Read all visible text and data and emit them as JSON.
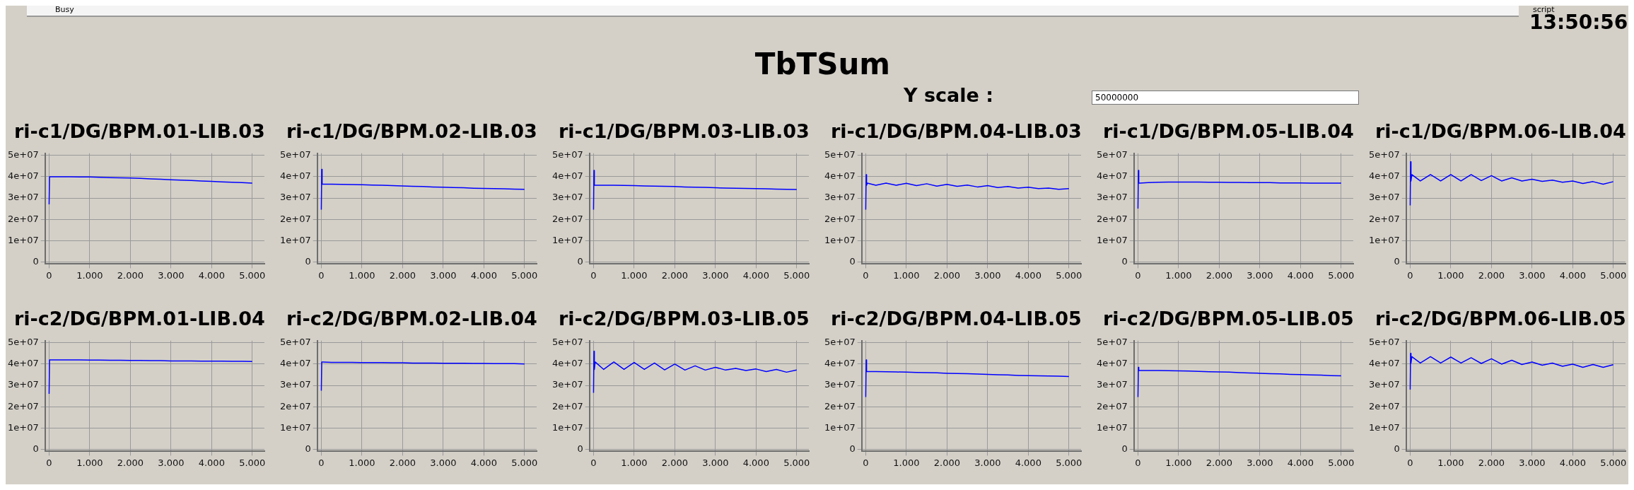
{
  "chart_data": [
    {
      "type": "other",
      "title": "TbTSum",
      "annotations": [
        "Busy",
        "script",
        "13:50:56",
        "Y scale :",
        "50000000"
      ]
    },
    {
      "type": "line",
      "title": "ri-c1/DG/BPM.01-LIB.03",
      "color": "#0000ff",
      "x": [
        0,
        10,
        20,
        40,
        250,
        500,
        750,
        1000,
        1250,
        1500,
        1750,
        2000,
        2250,
        2500,
        2750,
        3000,
        3250,
        3500,
        3750,
        4000,
        4250,
        4500,
        4750,
        5000
      ],
      "values": [
        27000000.0,
        40000000.0,
        40000000.0,
        40000000.0,
        40000000.0,
        40000000.0,
        39900000.0,
        39900000.0,
        39700000.0,
        39600000.0,
        39500000.0,
        39400000.0,
        39200000.0,
        39000000.0,
        38800000.0,
        38600000.0,
        38400000.0,
        38200000.0,
        38000000.0,
        37800000.0,
        37600000.0,
        37400000.0,
        37200000.0,
        37000000.0
      ],
      "xlim": [
        -100,
        5300
      ],
      "ylim": [
        -1000000.0,
        51000000.0
      ],
      "xticks": [
        {
          "value": 0,
          "label": "0"
        },
        {
          "value": 1000,
          "label": "1.000"
        },
        {
          "value": 2000,
          "label": "2.000"
        },
        {
          "value": 3000,
          "label": "3.000"
        },
        {
          "value": 4000,
          "label": "4.000"
        },
        {
          "value": 5000,
          "label": "5.000"
        }
      ],
      "yticks": [
        {
          "value": 0,
          "label": "0"
        },
        {
          "value": 10000000.0,
          "label": "1e+07"
        },
        {
          "value": 20000000.0,
          "label": "2e+07"
        },
        {
          "value": 30000000.0,
          "label": "3e+07"
        },
        {
          "value": 40000000.0,
          "label": "4e+07"
        },
        {
          "value": 50000000.0,
          "label": "5e+07"
        }
      ],
      "grid": true
    },
    {
      "type": "line",
      "title": "ri-c1/DG/BPM.02-LIB.03",
      "color": "#0000ff",
      "x": [
        0,
        10,
        20,
        40,
        250,
        500,
        750,
        1000,
        1250,
        1500,
        1750,
        2000,
        2250,
        2500,
        2750,
        3000,
        3250,
        3500,
        3750,
        4000,
        4250,
        4500,
        4750,
        5000
      ],
      "values": [
        24500000.0,
        43500000.0,
        36500000.0,
        36500000.0,
        36500000.0,
        36400000.0,
        36300000.0,
        36200000.0,
        36100000.0,
        36000000.0,
        35800000.0,
        35700000.0,
        35500000.0,
        35400000.0,
        35200000.0,
        35100000.0,
        34900000.0,
        34800000.0,
        34600000.0,
        34500000.0,
        34400000.0,
        34300000.0,
        34200000.0,
        34100000.0
      ],
      "xlim": [
        -100,
        5300
      ],
      "ylim": [
        -1000000.0,
        51000000.0
      ],
      "xticks": [
        {
          "value": 0,
          "label": "0"
        },
        {
          "value": 1000,
          "label": "1.000"
        },
        {
          "value": 2000,
          "label": "2.000"
        },
        {
          "value": 3000,
          "label": "3.000"
        },
        {
          "value": 4000,
          "label": "4.000"
        },
        {
          "value": 5000,
          "label": "5.000"
        }
      ],
      "yticks": [
        {
          "value": 0,
          "label": "0"
        },
        {
          "value": 10000000.0,
          "label": "1e+07"
        },
        {
          "value": 20000000.0,
          "label": "2e+07"
        },
        {
          "value": 30000000.0,
          "label": "3e+07"
        },
        {
          "value": 40000000.0,
          "label": "4e+07"
        },
        {
          "value": 50000000.0,
          "label": "5e+07"
        }
      ],
      "grid": true
    },
    {
      "type": "line",
      "title": "ri-c1/DG/BPM.03-LIB.03",
      "color": "#0000ff",
      "x": [
        0,
        10,
        20,
        40,
        250,
        500,
        750,
        1000,
        1250,
        1500,
        1750,
        2000,
        2250,
        2500,
        2750,
        3000,
        3250,
        3500,
        3750,
        4000,
        4250,
        4500,
        4750,
        5000
      ],
      "values": [
        24500000.0,
        43000000.0,
        36000000.0,
        36000000.0,
        36000000.0,
        36000000.0,
        35900000.0,
        35800000.0,
        35700000.0,
        35600000.0,
        35500000.0,
        35400000.0,
        35200000.0,
        35100000.0,
        35000000.0,
        34800000.0,
        34700000.0,
        34600000.0,
        34500000.0,
        34400000.0,
        34300000.0,
        34200000.0,
        34100000.0,
        34000000.0
      ],
      "xlim": [
        -100,
        5300
      ],
      "ylim": [
        -1000000.0,
        51000000.0
      ],
      "xticks": [
        {
          "value": 0,
          "label": "0"
        },
        {
          "value": 1000,
          "label": "1.000"
        },
        {
          "value": 2000,
          "label": "2.000"
        },
        {
          "value": 3000,
          "label": "3.000"
        },
        {
          "value": 4000,
          "label": "4.000"
        },
        {
          "value": 5000,
          "label": "5.000"
        }
      ],
      "yticks": [
        {
          "value": 0,
          "label": "0"
        },
        {
          "value": 10000000.0,
          "label": "1e+07"
        },
        {
          "value": 20000000.0,
          "label": "2e+07"
        },
        {
          "value": 30000000.0,
          "label": "3e+07"
        },
        {
          "value": 40000000.0,
          "label": "4e+07"
        },
        {
          "value": 50000000.0,
          "label": "5e+07"
        }
      ],
      "grid": true
    },
    {
      "type": "line",
      "title": "ri-c1/DG/BPM.04-LIB.03",
      "color": "#0000ff",
      "x": [
        0,
        10,
        20,
        40,
        250,
        500,
        750,
        1000,
        1250,
        1500,
        1750,
        2000,
        2250,
        2500,
        2750,
        3000,
        3250,
        3500,
        3750,
        4000,
        4250,
        4500,
        4750,
        5000
      ],
      "values": [
        24500000.0,
        41000000.0,
        36000000.0,
        37000000.0,
        36000000.0,
        37000000.0,
        36000000.0,
        36900000.0,
        35800000.0,
        36700000.0,
        35600000.0,
        36400000.0,
        35500000.0,
        36100000.0,
        35200000.0,
        35800000.0,
        34900000.0,
        35400000.0,
        34700000.0,
        35100000.0,
        34400000.0,
        34700000.0,
        34100000.0,
        34400000.0
      ],
      "xlim": [
        -100,
        5300
      ],
      "ylim": [
        -1000000.0,
        51000000.0
      ],
      "xticks": [
        {
          "value": 0,
          "label": "0"
        },
        {
          "value": 1000,
          "label": "1.000"
        },
        {
          "value": 2000,
          "label": "2.000"
        },
        {
          "value": 3000,
          "label": "3.000"
        },
        {
          "value": 4000,
          "label": "4.000"
        },
        {
          "value": 5000,
          "label": "5.000"
        }
      ],
      "yticks": [
        {
          "value": 0,
          "label": "0"
        },
        {
          "value": 10000000.0,
          "label": "1e+07"
        },
        {
          "value": 20000000.0,
          "label": "2e+07"
        },
        {
          "value": 30000000.0,
          "label": "3e+07"
        },
        {
          "value": 40000000.0,
          "label": "4e+07"
        },
        {
          "value": 50000000.0,
          "label": "5e+07"
        }
      ],
      "grid": true
    },
    {
      "type": "line",
      "title": "ri-c1/DG/BPM.05-LIB.04",
      "color": "#0000ff",
      "x": [
        0,
        10,
        20,
        40,
        250,
        500,
        750,
        1000,
        1250,
        1500,
        1750,
        2000,
        2250,
        2500,
        2750,
        3000,
        3250,
        3500,
        3750,
        4000,
        4250,
        4500,
        4750,
        5000
      ],
      "values": [
        25000000.0,
        43000000.0,
        37000000.0,
        37000000.0,
        37200000.0,
        37400000.0,
        37500000.0,
        37500000.0,
        37500000.0,
        37500000.0,
        37400000.0,
        37400000.0,
        37300000.0,
        37300000.0,
        37200000.0,
        37200000.0,
        37200000.0,
        37100000.0,
        37100000.0,
        37100000.0,
        37000000.0,
        37000000.0,
        37000000.0,
        37000000.0
      ],
      "xlim": [
        -100,
        5300
      ],
      "ylim": [
        -1000000.0,
        51000000.0
      ],
      "xticks": [
        {
          "value": 0,
          "label": "0"
        },
        {
          "value": 1000,
          "label": "1.000"
        },
        {
          "value": 2000,
          "label": "2.000"
        },
        {
          "value": 3000,
          "label": "3.000"
        },
        {
          "value": 4000,
          "label": "4.000"
        },
        {
          "value": 5000,
          "label": "5.000"
        }
      ],
      "yticks": [
        {
          "value": 0,
          "label": "0"
        },
        {
          "value": 10000000.0,
          "label": "1e+07"
        },
        {
          "value": 20000000.0,
          "label": "2e+07"
        },
        {
          "value": 30000000.0,
          "label": "3e+07"
        },
        {
          "value": 40000000.0,
          "label": "4e+07"
        },
        {
          "value": 50000000.0,
          "label": "5e+07"
        }
      ],
      "grid": true
    },
    {
      "type": "line",
      "title": "ri-c1/DG/BPM.06-LIB.04",
      "color": "#0000ff",
      "x": [
        0,
        10,
        20,
        40,
        250,
        500,
        750,
        1000,
        1250,
        1500,
        1750,
        2000,
        2250,
        2500,
        2750,
        3000,
        3250,
        3500,
        3750,
        4000,
        4250,
        4500,
        4750,
        5000
      ],
      "values": [
        26500000.0,
        47000000.0,
        38000000.0,
        41000000.0,
        38000000.0,
        41000000.0,
        38000000.0,
        41000000.0,
        38000000.0,
        41000000.0,
        38200000.0,
        40500000.0,
        38000000.0,
        39500000.0,
        38000000.0,
        38800000.0,
        37800000.0,
        38400000.0,
        37400000.0,
        38000000.0,
        36800000.0,
        37700000.0,
        36500000.0,
        37700000.0
      ],
      "xlim": [
        -100,
        5300
      ],
      "ylim": [
        -1000000.0,
        51000000.0
      ],
      "xticks": [
        {
          "value": 0,
          "label": "0"
        },
        {
          "value": 1000,
          "label": "1.000"
        },
        {
          "value": 2000,
          "label": "2.000"
        },
        {
          "value": 3000,
          "label": "3.000"
        },
        {
          "value": 4000,
          "label": "4.000"
        },
        {
          "value": 5000,
          "label": "5.000"
        }
      ],
      "yticks": [
        {
          "value": 0,
          "label": "0"
        },
        {
          "value": 10000000.0,
          "label": "1e+07"
        },
        {
          "value": 20000000.0,
          "label": "2e+07"
        },
        {
          "value": 30000000.0,
          "label": "3e+07"
        },
        {
          "value": 40000000.0,
          "label": "4e+07"
        },
        {
          "value": 50000000.0,
          "label": "5e+07"
        }
      ],
      "grid": true
    },
    {
      "type": "line",
      "title": "ri-c2/DG/BPM.01-LIB.04",
      "color": "#0000ff",
      "x": [
        0,
        10,
        20,
        40,
        250,
        500,
        750,
        1000,
        1250,
        1500,
        1750,
        2000,
        2250,
        2500,
        2750,
        3000,
        3250,
        3500,
        3750,
        4000,
        4250,
        4500,
        4750,
        5000
      ],
      "values": [
        26000000.0,
        42000000.0,
        42000000.0,
        42000000.0,
        42000000.0,
        42000000.0,
        42000000.0,
        41900000.0,
        41900000.0,
        41800000.0,
        41800000.0,
        41700000.0,
        41700000.0,
        41600000.0,
        41600000.0,
        41500000.0,
        41500000.0,
        41500000.0,
        41400000.0,
        41400000.0,
        41400000.0,
        41300000.0,
        41300000.0,
        41200000.0
      ],
      "xlim": [
        -100,
        5300
      ],
      "ylim": [
        -1000000.0,
        51000000.0
      ],
      "xticks": [
        {
          "value": 0,
          "label": "0"
        },
        {
          "value": 1000,
          "label": "1.000"
        },
        {
          "value": 2000,
          "label": "2.000"
        },
        {
          "value": 3000,
          "label": "3.000"
        },
        {
          "value": 4000,
          "label": "4.000"
        },
        {
          "value": 5000,
          "label": "5.000"
        }
      ],
      "yticks": [
        {
          "value": 0,
          "label": "0"
        },
        {
          "value": 10000000.0,
          "label": "1e+07"
        },
        {
          "value": 20000000.0,
          "label": "2e+07"
        },
        {
          "value": 30000000.0,
          "label": "3e+07"
        },
        {
          "value": 40000000.0,
          "label": "4e+07"
        },
        {
          "value": 50000000.0,
          "label": "5e+07"
        }
      ],
      "grid": true
    },
    {
      "type": "line",
      "title": "ri-c2/DG/BPM.02-LIB.04",
      "color": "#0000ff",
      "x": [
        0,
        10,
        20,
        40,
        250,
        500,
        750,
        1000,
        1250,
        1500,
        1750,
        2000,
        2250,
        2500,
        2750,
        3000,
        3250,
        3500,
        3750,
        4000,
        4250,
        4500,
        4750,
        5000
      ],
      "values": [
        27500000.0,
        41000000.0,
        41000000.0,
        41000000.0,
        40800000.0,
        40800000.0,
        40800000.0,
        40700000.0,
        40700000.0,
        40700000.0,
        40600000.0,
        40600000.0,
        40500000.0,
        40500000.0,
        40500000.0,
        40400000.0,
        40400000.0,
        40400000.0,
        40300000.0,
        40300000.0,
        40200000.0,
        40200000.0,
        40200000.0,
        40100000.0
      ],
      "xlim": [
        -100,
        5300
      ],
      "ylim": [
        -1000000.0,
        51000000.0
      ],
      "xticks": [
        {
          "value": 0,
          "label": "0"
        },
        {
          "value": 1000,
          "label": "1.000"
        },
        {
          "value": 2000,
          "label": "2.000"
        },
        {
          "value": 3000,
          "label": "3.000"
        },
        {
          "value": 4000,
          "label": "4.000"
        },
        {
          "value": 5000,
          "label": "5.000"
        }
      ],
      "yticks": [
        {
          "value": 0,
          "label": "0"
        },
        {
          "value": 10000000.0,
          "label": "1e+07"
        },
        {
          "value": 20000000.0,
          "label": "2e+07"
        },
        {
          "value": 30000000.0,
          "label": "3e+07"
        },
        {
          "value": 40000000.0,
          "label": "4e+07"
        },
        {
          "value": 50000000.0,
          "label": "5e+07"
        }
      ],
      "grid": true
    },
    {
      "type": "line",
      "title": "ri-c2/DG/BPM.03-LIB.05",
      "color": "#0000ff",
      "x": [
        0,
        10,
        20,
        40,
        250,
        500,
        750,
        1000,
        1250,
        1500,
        1750,
        2000,
        2250,
        2500,
        2750,
        3000,
        3250,
        3500,
        3750,
        4000,
        4250,
        4500,
        4750,
        5000
      ],
      "values": [
        26500000.0,
        46000000.0,
        37500000.0,
        41000000.0,
        37500000.0,
        41000000.0,
        37500000.0,
        40800000.0,
        37500000.0,
        40500000.0,
        37300000.0,
        40000000.0,
        37200000.0,
        39200000.0,
        37200000.0,
        38500000.0,
        37200000.0,
        38000000.0,
        37000000.0,
        37700000.0,
        36500000.0,
        37500000.0,
        36200000.0,
        37200000.0
      ],
      "xlim": [
        -100,
        5300
      ],
      "ylim": [
        -1000000.0,
        51000000.0
      ],
      "xticks": [
        {
          "value": 0,
          "label": "0"
        },
        {
          "value": 1000,
          "label": "1.000"
        },
        {
          "value": 2000,
          "label": "2.000"
        },
        {
          "value": 3000,
          "label": "3.000"
        },
        {
          "value": 4000,
          "label": "4.000"
        },
        {
          "value": 5000,
          "label": "5.000"
        }
      ],
      "yticks": [
        {
          "value": 0,
          "label": "0"
        },
        {
          "value": 10000000.0,
          "label": "1e+07"
        },
        {
          "value": 20000000.0,
          "label": "2e+07"
        },
        {
          "value": 30000000.0,
          "label": "3e+07"
        },
        {
          "value": 40000000.0,
          "label": "4e+07"
        },
        {
          "value": 50000000.0,
          "label": "5e+07"
        }
      ],
      "grid": true
    },
    {
      "type": "line",
      "title": "ri-c2/DG/BPM.04-LIB.05",
      "color": "#0000ff",
      "x": [
        0,
        10,
        20,
        40,
        250,
        500,
        750,
        1000,
        1250,
        1500,
        1750,
        2000,
        2250,
        2500,
        2750,
        3000,
        3250,
        3500,
        3750,
        4000,
        4250,
        4500,
        4750,
        5000
      ],
      "values": [
        24500000.0,
        42000000.0,
        36500000.0,
        36500000.0,
        36500000.0,
        36400000.0,
        36300000.0,
        36200000.0,
        36100000.0,
        36000000.0,
        35900000.0,
        35700000.0,
        35600000.0,
        35500000.0,
        35300000.0,
        35200000.0,
        35000000.0,
        34900000.0,
        34700000.0,
        34600000.0,
        34500000.0,
        34400000.0,
        34300000.0,
        34200000.0
      ],
      "xlim": [
        -100,
        5300
      ],
      "ylim": [
        -1000000.0,
        51000000.0
      ],
      "xticks": [
        {
          "value": 0,
          "label": "0"
        },
        {
          "value": 1000,
          "label": "1.000"
        },
        {
          "value": 2000,
          "label": "2.000"
        },
        {
          "value": 3000,
          "label": "3.000"
        },
        {
          "value": 4000,
          "label": "4.000"
        },
        {
          "value": 5000,
          "label": "5.000"
        }
      ],
      "yticks": [
        {
          "value": 0,
          "label": "0"
        },
        {
          "value": 10000000.0,
          "label": "1e+07"
        },
        {
          "value": 20000000.0,
          "label": "2e+07"
        },
        {
          "value": 30000000.0,
          "label": "3e+07"
        },
        {
          "value": 40000000.0,
          "label": "4e+07"
        },
        {
          "value": 50000000.0,
          "label": "5e+07"
        }
      ],
      "grid": true
    },
    {
      "type": "line",
      "title": "ri-c2/DG/BPM.05-LIB.05",
      "color": "#0000ff",
      "x": [
        0,
        10,
        20,
        40,
        250,
        500,
        750,
        1000,
        1250,
        1500,
        1750,
        2000,
        2250,
        2500,
        2750,
        3000,
        3250,
        3500,
        3750,
        4000,
        4250,
        4500,
        4750,
        5000
      ],
      "values": [
        24500000.0,
        38500000.0,
        37000000.0,
        37000000.0,
        37000000.0,
        37000000.0,
        36900000.0,
        36800000.0,
        36700000.0,
        36600000.0,
        36400000.0,
        36300000.0,
        36200000.0,
        36000000.0,
        35800000.0,
        35700000.0,
        35500000.0,
        35400000.0,
        35200000.0,
        35100000.0,
        34900000.0,
        34800000.0,
        34600000.0,
        34500000.0
      ],
      "xlim": [
        -100,
        5300
      ],
      "ylim": [
        -1000000.0,
        51000000.0
      ],
      "xticks": [
        {
          "value": 0,
          "label": "0"
        },
        {
          "value": 1000,
          "label": "1.000"
        },
        {
          "value": 2000,
          "label": "2.000"
        },
        {
          "value": 3000,
          "label": "3.000"
        },
        {
          "value": 4000,
          "label": "4.000"
        },
        {
          "value": 5000,
          "label": "5.000"
        }
      ],
      "yticks": [
        {
          "value": 0,
          "label": "0"
        },
        {
          "value": 10000000.0,
          "label": "1e+07"
        },
        {
          "value": 20000000.0,
          "label": "2e+07"
        },
        {
          "value": 30000000.0,
          "label": "3e+07"
        },
        {
          "value": 40000000.0,
          "label": "4e+07"
        },
        {
          "value": 50000000.0,
          "label": "5e+07"
        }
      ],
      "grid": true
    },
    {
      "type": "line",
      "title": "ri-c2/DG/BPM.06-LIB.05",
      "color": "#0000ff",
      "x": [
        0,
        10,
        20,
        40,
        250,
        500,
        750,
        1000,
        1250,
        1500,
        1750,
        2000,
        2250,
        2500,
        2750,
        3000,
        3250,
        3500,
        3750,
        4000,
        4250,
        4500,
        4750,
        5000
      ],
      "values": [
        28000000.0,
        45000000.0,
        40500000.0,
        43500000.0,
        40500000.0,
        43500000.0,
        40500000.0,
        43300000.0,
        40500000.0,
        43000000.0,
        40300000.0,
        42500000.0,
        40000000.0,
        41800000.0,
        39800000.0,
        41000000.0,
        39500000.0,
        40500000.0,
        39000000.0,
        40000000.0,
        38500000.0,
        39800000.0,
        38500000.0,
        39700000.0
      ],
      "xlim": [
        -100,
        5300
      ],
      "ylim": [
        -1000000.0,
        51000000.0
      ],
      "xticks": [
        {
          "value": 0,
          "label": "0"
        },
        {
          "value": 1000,
          "label": "1.000"
        },
        {
          "value": 2000,
          "label": "2.000"
        },
        {
          "value": 3000,
          "label": "3.000"
        },
        {
          "value": 4000,
          "label": "4.000"
        },
        {
          "value": 5000,
          "label": "5.000"
        }
      ],
      "yticks": [
        {
          "value": 0,
          "label": "0"
        },
        {
          "value": 10000000.0,
          "label": "1e+07"
        },
        {
          "value": 20000000.0,
          "label": "2e+07"
        },
        {
          "value": 30000000.0,
          "label": "3e+07"
        },
        {
          "value": 40000000.0,
          "label": "4e+07"
        },
        {
          "value": 50000000.0,
          "label": "5e+07"
        }
      ],
      "grid": true
    }
  ]
}
